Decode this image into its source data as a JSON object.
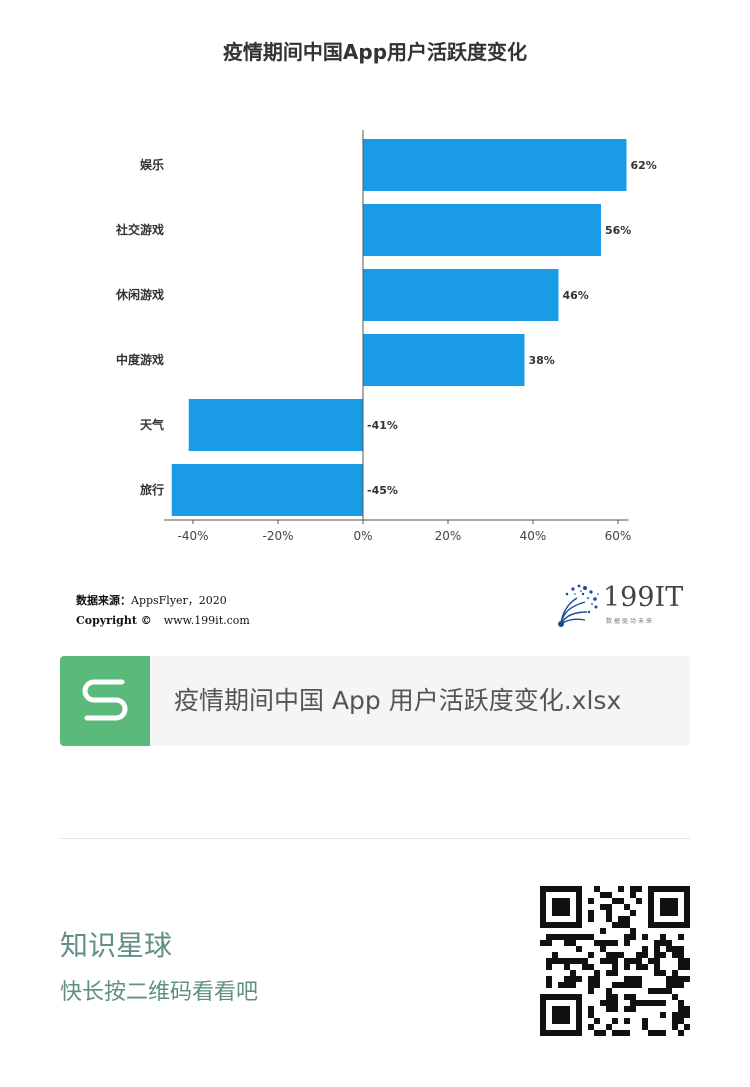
{
  "chart_data": {
    "type": "bar",
    "orientation": "horizontal",
    "title": "疫情期间中国App用户活跃度变化",
    "categories": [
      "娱乐",
      "社交游戏",
      "休闲游戏",
      "中度游戏",
      "天气",
      "旅行"
    ],
    "values": [
      62,
      56,
      46,
      38,
      -41,
      -45
    ],
    "data_labels": [
      "62%",
      "56%",
      "46%",
      "38%",
      "-41%",
      "-45%"
    ],
    "xlim": [
      -45,
      62
    ],
    "x_ticks": [
      -40,
      -20,
      0,
      20,
      40,
      60
    ],
    "x_tick_labels": [
      "-40%",
      "-20%",
      "0%",
      "20%",
      "40%",
      "60%"
    ],
    "xlabel": "",
    "ylabel": "",
    "grid": false,
    "bar_color": "#1a9be6"
  },
  "source": {
    "label": "数据来源：",
    "value": "AppsFlyer，2020",
    "copyright": "Copyright ©",
    "site": "www.199it.com"
  },
  "brand": {
    "name": "199IT",
    "tagline": "数据驱动未来",
    "icon": "dandelion-logo-icon"
  },
  "attachment": {
    "icon": "spreadsheet-s-icon",
    "icon_color": "#5cb97c",
    "filename": "疫情期间中国 App 用户活跃度变化.xlsx"
  },
  "promo": {
    "title": "知识星球",
    "subtitle": "快长按二维码看看吧",
    "qr_icon": "qr-code-icon"
  }
}
